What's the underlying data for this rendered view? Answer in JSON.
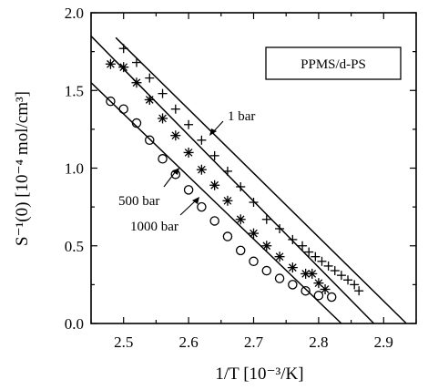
{
  "chart_data": {
    "type": "scatter",
    "xlabel": "1/T [10⁻³/K]",
    "ylabel": "S⁻¹(0) [10⁻⁴ mol/cm³]",
    "xlim": [
      2.45,
      2.95
    ],
    "ylim": [
      0.0,
      2.0
    ],
    "xticks": [
      "2.5",
      "2.6",
      "2.7",
      "2.8",
      "2.9"
    ],
    "yticks": [
      "0.0",
      "0.5",
      "1.0",
      "1.5",
      "2.0"
    ],
    "grid": false,
    "legend_box": "PPMS/d-PS",
    "series": [
      {
        "name": "1 bar",
        "marker": "plus",
        "x": [
          2.5,
          2.52,
          2.54,
          2.56,
          2.58,
          2.6,
          2.62,
          2.64,
          2.66,
          2.68,
          2.7,
          2.72,
          2.74,
          2.76,
          2.775,
          2.785,
          2.795,
          2.805,
          2.815,
          2.825,
          2.835,
          2.845,
          2.855,
          2.862
        ],
        "y": [
          1.77,
          1.68,
          1.58,
          1.48,
          1.38,
          1.28,
          1.18,
          1.08,
          0.98,
          0.88,
          0.78,
          0.67,
          0.61,
          0.54,
          0.5,
          0.46,
          0.43,
          0.4,
          0.37,
          0.34,
          0.31,
          0.28,
          0.25,
          0.21
        ],
        "fit": {
          "x": [
            2.488,
            2.935
          ],
          "y": [
            1.84,
            0.0
          ]
        }
      },
      {
        "name": "500 bar",
        "marker": "asterisk",
        "x": [
          2.48,
          2.5,
          2.52,
          2.54,
          2.56,
          2.58,
          2.6,
          2.62,
          2.64,
          2.66,
          2.68,
          2.7,
          2.72,
          2.74,
          2.76,
          2.78,
          2.79,
          2.8,
          2.81
        ],
        "y": [
          1.67,
          1.65,
          1.55,
          1.44,
          1.32,
          1.21,
          1.1,
          0.99,
          0.89,
          0.79,
          0.67,
          0.58,
          0.5,
          0.43,
          0.36,
          0.32,
          0.32,
          0.26,
          0.22
        ],
        "fit": {
          "x": [
            2.45,
            2.885
          ],
          "y": [
            1.85,
            0.0
          ]
        }
      },
      {
        "name": "1000 bar",
        "marker": "circle",
        "x": [
          2.48,
          2.5,
          2.52,
          2.54,
          2.56,
          2.58,
          2.6,
          2.62,
          2.64,
          2.66,
          2.68,
          2.7,
          2.72,
          2.74,
          2.76,
          2.78,
          2.8,
          2.82
        ],
        "y": [
          1.43,
          1.38,
          1.29,
          1.18,
          1.06,
          0.96,
          0.86,
          0.75,
          0.66,
          0.56,
          0.47,
          0.4,
          0.34,
          0.29,
          0.25,
          0.21,
          0.18,
          0.17
        ],
        "fit": {
          "x": [
            2.45,
            2.835
          ],
          "y": [
            1.55,
            0.0
          ]
        }
      }
    ],
    "annotations": [
      {
        "text": "1 bar",
        "series": "1 bar"
      },
      {
        "text": "500 bar",
        "series": "500 bar"
      },
      {
        "text": "1000 bar",
        "series": "1000 bar"
      }
    ]
  }
}
